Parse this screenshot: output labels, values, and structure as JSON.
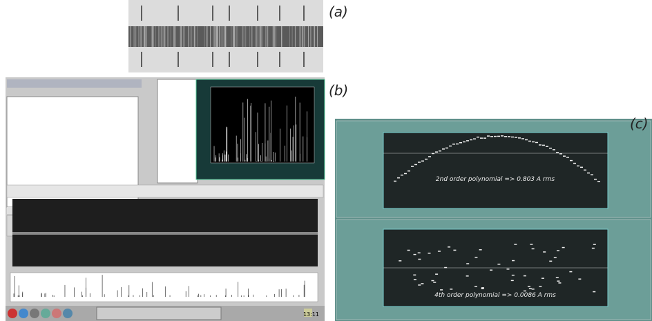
{
  "labels": {
    "a": "(a)",
    "b": "(b)",
    "c": "(c)"
  },
  "panel_b": {
    "taskbar": {
      "clock": "13:11"
    }
  },
  "panel_c": {
    "top_plot": {
      "annotation": "2nd order polynomial => 0.803 A rms"
    },
    "bottom_plot": {
      "annotation": "4th order polynomial => 0.0086 A rms"
    }
  }
}
